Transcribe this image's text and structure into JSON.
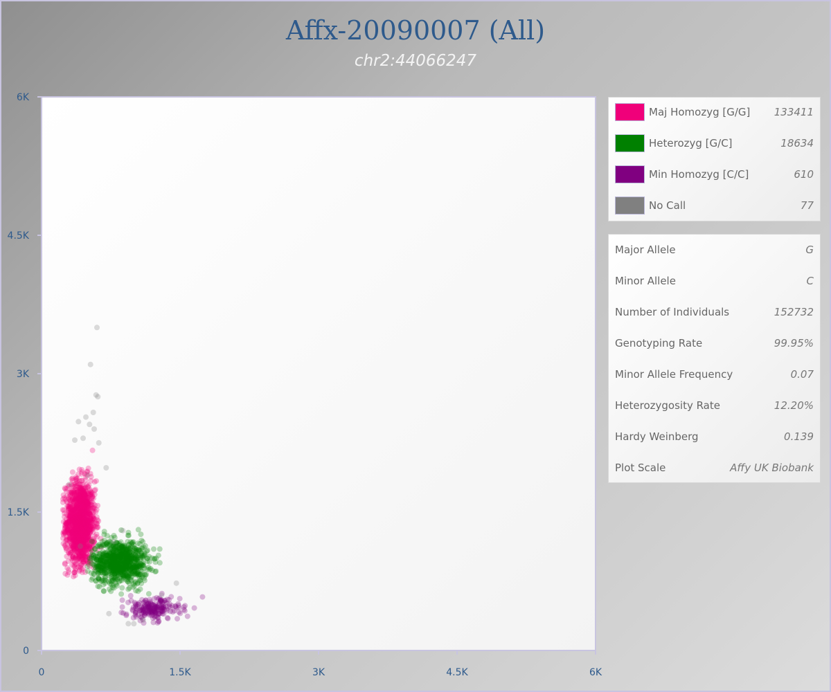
{
  "header": {
    "title": "Affx-20090007 (All)",
    "subtitle": "chr2:44066247"
  },
  "legend": [
    {
      "label": "Maj Homozyg [G/G]",
      "count": "133411",
      "color": "#f0007a"
    },
    {
      "label": "Heterozyg [G/C]",
      "count": "18634",
      "color": "#008000"
    },
    {
      "label": "Min Homozyg [C/C]",
      "count": "610",
      "color": "#800080"
    },
    {
      "label": "No Call",
      "count": "77",
      "color": "#808080"
    }
  ],
  "stats": [
    {
      "label": "Major Allele",
      "value": "G"
    },
    {
      "label": "Minor Allele",
      "value": "C"
    },
    {
      "label": "Number of Individuals",
      "value": "152732"
    },
    {
      "label": "Genotyping Rate",
      "value": "99.95%"
    },
    {
      "label": "Minor Allele Frequency",
      "value": "0.07"
    },
    {
      "label": "Heterozygosity Rate",
      "value": "12.20%"
    },
    {
      "label": "Hardy Weinberg",
      "value": "0.139"
    },
    {
      "label": "Plot Scale",
      "value": "Affy UK Biobank"
    }
  ],
  "chart_data": {
    "type": "scatter",
    "xlim": [
      0,
      6000
    ],
    "ylim": [
      0,
      6000
    ],
    "x_ticks": [
      0,
      1500,
      3000,
      4500,
      6000
    ],
    "x_tick_labels": [
      "0",
      "1.5K",
      "3K",
      "4.5K",
      "6K"
    ],
    "y_ticks": [
      0,
      1500,
      3000,
      4500,
      6000
    ],
    "y_tick_labels": [
      "0",
      "1.5K",
      "3K",
      "4.5K",
      "6K"
    ],
    "grid": false,
    "series": [
      {
        "name": "Maj Homozyg [G/G]",
        "color": "#f0007a",
        "cluster": {
          "center": [
            420,
            1380
          ],
          "sd": [
            80,
            230
          ],
          "x_range": [
            230,
            650
          ],
          "y_range": [
            800,
            2400
          ]
        }
      },
      {
        "name": "Heterozyg [G/C]",
        "color": "#008000",
        "cluster": {
          "center": [
            850,
            960
          ],
          "sd": [
            150,
            120
          ],
          "x_range": [
            500,
            1350
          ],
          "y_range": [
            550,
            1500
          ]
        }
      },
      {
        "name": "Min Homozyg [C/C]",
        "color": "#800080",
        "cluster": {
          "center": [
            1200,
            450
          ],
          "sd": [
            150,
            60
          ],
          "x_range": [
            850,
            1750
          ],
          "y_range": [
            250,
            700
          ]
        }
      },
      {
        "name": "No Call",
        "color": "#808080",
        "points": [
          [
            600,
            3500
          ],
          [
            530,
            3100
          ],
          [
            590,
            2770
          ],
          [
            610,
            2750
          ],
          [
            480,
            2530
          ],
          [
            560,
            2580
          ],
          [
            520,
            2450
          ],
          [
            570,
            2400
          ],
          [
            400,
            2480
          ],
          [
            360,
            2280
          ],
          [
            450,
            2300
          ],
          [
            620,
            2250
          ],
          [
            300,
            1800
          ],
          [
            500,
            1900
          ],
          [
            700,
            1980
          ],
          [
            780,
            1180
          ],
          [
            420,
            1130
          ],
          [
            730,
            400
          ],
          [
            1100,
            330
          ],
          [
            1300,
            600
          ],
          [
            1460,
            730
          ],
          [
            880,
            1300
          ],
          [
            940,
            290
          ],
          [
            1000,
            290
          ]
        ]
      }
    ]
  }
}
